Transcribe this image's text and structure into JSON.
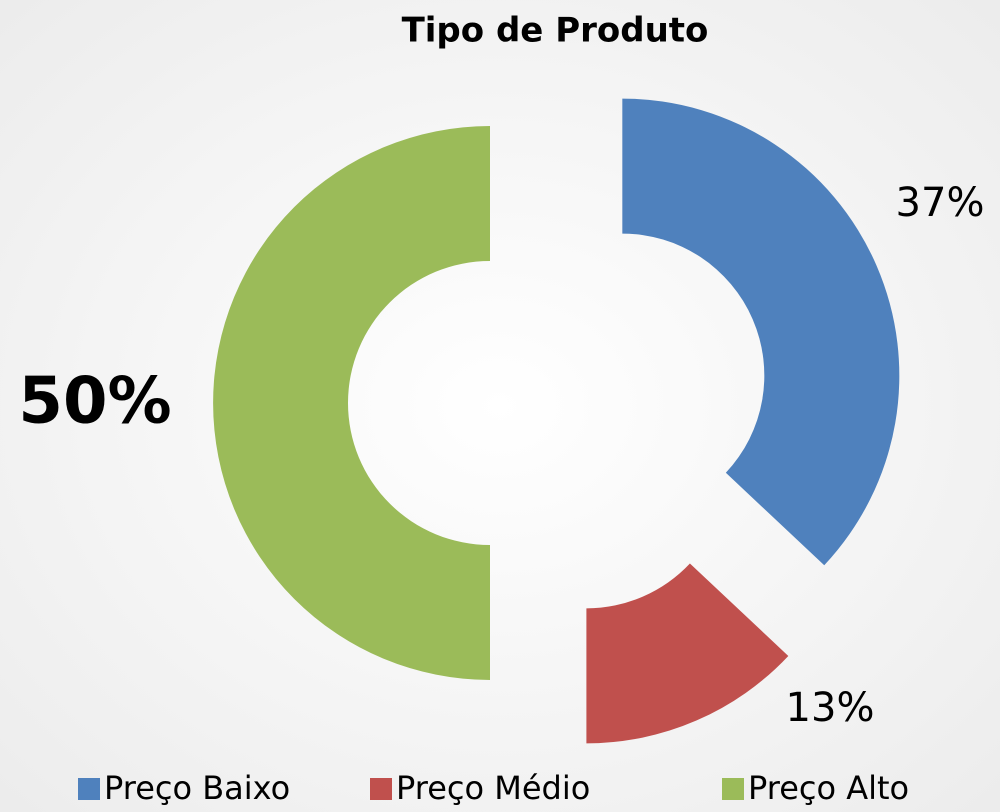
{
  "chart_data": {
    "type": "donut",
    "title": "Tipo de Produto",
    "categories": [
      "Preço Baixo",
      "Preço Médio",
      "Preço Alto"
    ],
    "values": [
      37,
      13,
      50
    ],
    "value_labels": [
      "37%",
      "13%",
      "50%"
    ],
    "colors": [
      "#4f81bd",
      "#c0504d",
      "#9bbb59"
    ],
    "legend": "bottom"
  }
}
